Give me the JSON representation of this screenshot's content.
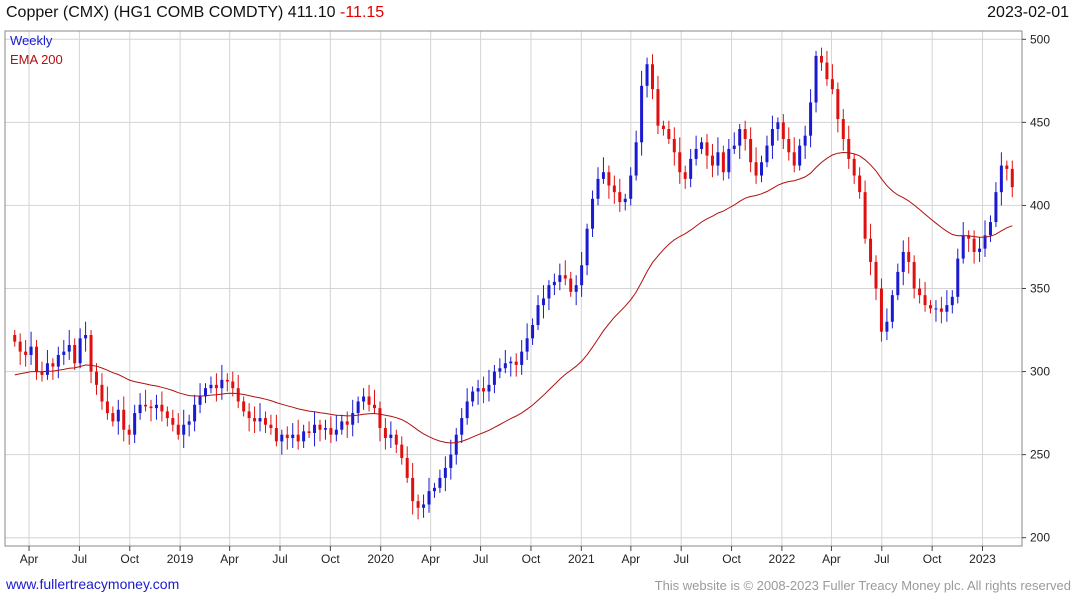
{
  "header": {
    "title": "Copper (CMX) (HG1 COMB COMDTY) 411.10",
    "change": "-11.15",
    "date": "2023-02-01"
  },
  "footer": {
    "left": "www.fullertreacymoney.com",
    "right": "This website is © 2008-2023 Fuller Treacy Money plc. All rights reserved"
  },
  "colors": {
    "up": "#1a1ad0",
    "down": "#e01010",
    "ema": "#b01010",
    "grid": "#d4d4d4"
  },
  "chart_data": {
    "type": "candlestick",
    "title": "Copper (CMX) (HG1 COMB COMDTY) 411.10 -11.15",
    "interval": "Weekly",
    "overlay": "EMA 200",
    "legend": [
      "Weekly",
      "EMA 200"
    ],
    "ylim": [
      195,
      505
    ],
    "yticks": [
      200,
      250,
      300,
      350,
      400,
      450,
      500
    ],
    "xlabels": [
      {
        "label": "Apr",
        "t": 0.095
      },
      {
        "label": "Jul",
        "t": 0.346
      },
      {
        "label": "Oct",
        "t": 0.597
      },
      {
        "label": "2019",
        "t": 0.848
      },
      {
        "label": "Apr",
        "t": 1.095
      },
      {
        "label": "Jul",
        "t": 1.346
      },
      {
        "label": "Oct",
        "t": 1.597
      },
      {
        "label": "2020",
        "t": 1.848
      },
      {
        "label": "Apr",
        "t": 2.097
      },
      {
        "label": "Jul",
        "t": 2.346
      },
      {
        "label": "Oct",
        "t": 2.597
      },
      {
        "label": "2021",
        "t": 2.848
      },
      {
        "label": "Apr",
        "t": 3.095
      },
      {
        "label": "Jul",
        "t": 3.346
      },
      {
        "label": "Oct",
        "t": 3.597
      },
      {
        "label": "2022",
        "t": 3.848
      },
      {
        "label": "Apr",
        "t": 4.095
      },
      {
        "label": "Jul",
        "t": 4.346
      },
      {
        "label": "Oct",
        "t": 4.597
      },
      {
        "label": "2023",
        "t": 4.848
      }
    ],
    "closes": [
      318,
      312,
      310,
      315,
      300,
      298,
      305,
      303,
      310,
      312,
      316,
      305,
      320,
      322,
      300,
      292,
      282,
      275,
      270,
      277,
      265,
      262,
      275,
      280,
      279,
      278,
      280,
      276,
      272,
      268,
      262,
      268,
      270,
      280,
      285,
      290,
      292,
      290,
      295,
      294,
      290,
      282,
      276,
      272,
      270,
      272,
      268,
      266,
      258,
      262,
      260,
      262,
      258,
      264,
      263,
      268,
      265,
      266,
      262,
      265,
      270,
      268,
      275,
      282,
      285,
      280,
      278,
      266,
      260,
      262,
      256,
      248,
      236,
      222,
      218,
      220,
      228,
      230,
      236,
      242,
      250,
      262,
      272,
      282,
      288,
      290,
      288,
      292,
      300,
      302,
      305,
      306,
      304,
      312,
      320,
      328,
      340,
      344,
      352,
      354,
      358,
      356,
      348,
      352,
      364,
      386,
      404,
      416,
      420,
      412,
      408,
      402,
      404,
      418,
      438,
      472,
      485,
      470,
      448,
      446,
      440,
      432,
      420,
      416,
      428,
      434,
      438,
      430,
      424,
      432,
      420,
      434,
      436,
      446,
      440,
      426,
      418,
      426,
      436,
      446,
      450,
      440,
      432,
      424,
      436,
      442,
      462,
      490,
      486,
      476,
      470,
      452,
      440,
      428,
      418,
      408,
      380,
      366,
      350,
      324,
      330,
      346,
      360,
      372,
      366,
      350,
      346,
      340,
      338,
      338,
      336,
      340,
      345,
      368,
      382,
      380,
      372,
      374,
      382,
      390,
      408,
      424,
      422,
      411
    ]
  }
}
